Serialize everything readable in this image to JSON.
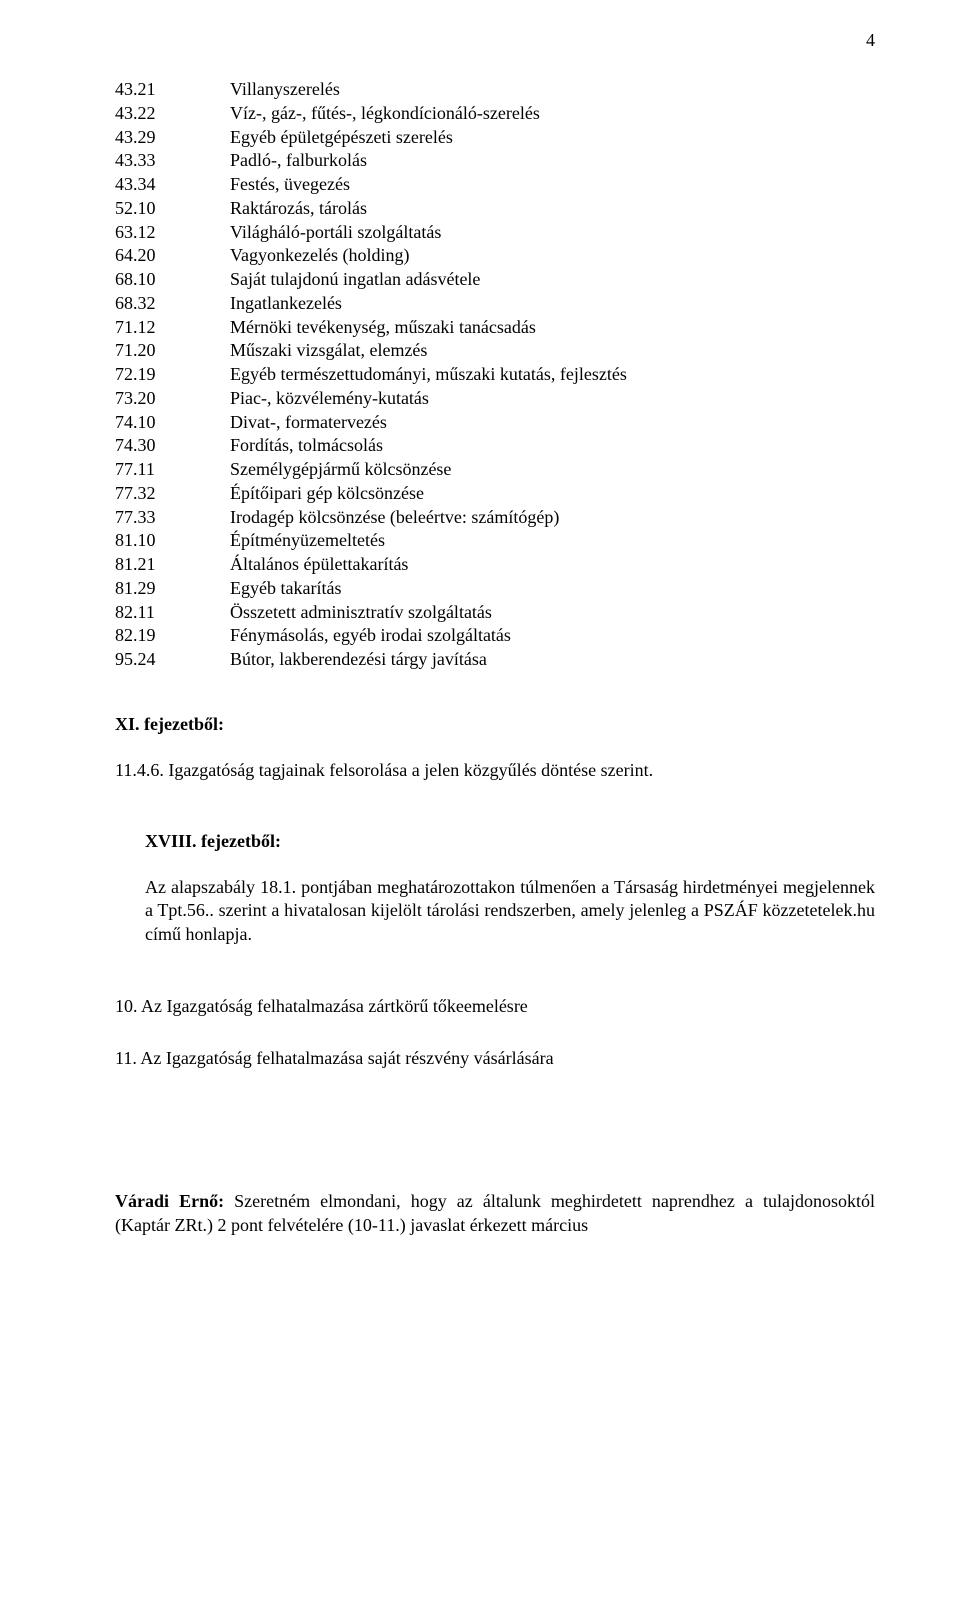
{
  "pageNumber": "4",
  "codes": [
    {
      "c": "43.21",
      "d": "Villanyszerelés"
    },
    {
      "c": "43.22",
      "d": "Víz-, gáz-, fűtés-, légkondícionáló-szerelés"
    },
    {
      "c": "43.29",
      "d": "Egyéb épületgépészeti szerelés"
    },
    {
      "c": "43.33",
      "d": "Padló-, falburkolás"
    },
    {
      "c": "43.34",
      "d": "Festés, üvegezés"
    },
    {
      "c": "52.10",
      "d": "Raktározás, tárolás"
    },
    {
      "c": "63.12",
      "d": "Világháló-portáli szolgáltatás"
    },
    {
      "c": "64.20",
      "d": "Vagyonkezelés (holding)"
    },
    {
      "c": "68.10",
      "d": "Saját tulajdonú ingatlan adásvétele"
    },
    {
      "c": "68.32",
      "d": "Ingatlankezelés"
    },
    {
      "c": "71.12",
      "d": "Mérnöki tevékenység, műszaki tanácsadás"
    },
    {
      "c": "71.20",
      "d": "Műszaki vizsgálat, elemzés"
    },
    {
      "c": "72.19",
      "d": "Egyéb természettudományi, műszaki kutatás, fejlesztés"
    },
    {
      "c": "73.20",
      "d": "Piac-, közvélemény-kutatás"
    },
    {
      "c": "74.10",
      "d": "Divat-, formatervezés"
    },
    {
      "c": "74.30",
      "d": "Fordítás, tolmácsolás"
    },
    {
      "c": "77.11",
      "d": "Személygépjármű kölcsönzése"
    },
    {
      "c": "77.32",
      "d": "Építőipari gép kölcsönzése"
    },
    {
      "c": "77.33",
      "d": "Irodagép kölcsönzése (beleértve: számítógép)"
    },
    {
      "c": "81.10",
      "d": "Építményüzemeltetés"
    },
    {
      "c": "81.21",
      "d": "Általános épülettakarítás"
    },
    {
      "c": "81.29",
      "d": "Egyéb takarítás"
    },
    {
      "c": "82.11",
      "d": "Összetett adminisztratív szolgáltatás"
    },
    {
      "c": "82.19",
      "d": "Fénymásolás, egyéb irodai szolgáltatás"
    },
    {
      "c": "95.24",
      "d": "Bútor, lakberendezési tárgy javítása"
    }
  ],
  "section11": {
    "heading": "XI. fejezetből:",
    "para": "11.4.6. Igazgatóság tagjainak felsorolása a jelen közgyűlés döntése szerint."
  },
  "section18": {
    "heading": "XVIII. fejezetből:",
    "para": "Az alapszabály 18.1. pontjában meghatározottakon túlmenően a Társaság hirdetményei megjelennek a Tpt.56.. szerint a hivatalosan kijelölt tárolási rendszerben, amely jelenleg a PSZÁF közzetetelek.hu című honlapja."
  },
  "num10": "10. Az Igazgatóság felhatalmazása zártkörű tőkeemelésre",
  "num11": "11. Az Igazgatóság felhatalmazása saját részvény vásárlására",
  "bottom": {
    "speaker": "Váradi Ernő:",
    "text": " Szeretném elmondani, hogy az általunk meghirdetett naprendhez a tulajdonosoktól (Kaptár ZRt.) 2 pont felvételére (10-11.) javaslat érkezett március"
  }
}
